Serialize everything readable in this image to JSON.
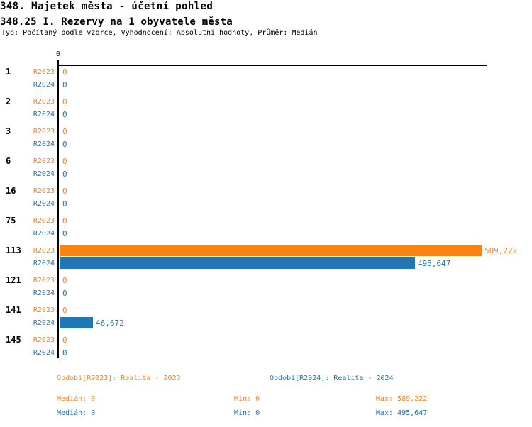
{
  "header": {
    "title": "348. Majetek města - účetní pohled",
    "subtitle": "348.25 I. Rezervy na 1 obyvatele města",
    "meta": "Typ: Počítaný podle vzorce, Vyhodnocení: Absolutní hodnoty, Průměr: Medián"
  },
  "chart_data": {
    "type": "bar",
    "orientation": "horizontal",
    "title": "348.25 I. Rezervy na 1 obyvatele města",
    "axis_tick_label": "0",
    "xlim": [
      0,
      589222
    ],
    "grid": false,
    "categories": [
      "1",
      "2",
      "3",
      "6",
      "16",
      "75",
      "113",
      "121",
      "141",
      "145"
    ],
    "series": [
      {
        "name": "R2023",
        "color": "#FD830F",
        "values": [
          0,
          0,
          0,
          0,
          0,
          0,
          589222,
          0,
          0,
          0
        ],
        "labels": [
          "0",
          "0",
          "0",
          "0",
          "0",
          "0",
          "589,222",
          "0",
          "0",
          "0"
        ]
      },
      {
        "name": "R2024",
        "color": "#2176B5",
        "values": [
          0,
          0,
          0,
          0,
          0,
          0,
          495647,
          0,
          46672,
          0
        ],
        "labels": [
          "0",
          "0",
          "0",
          "0",
          "0",
          "0",
          "495,647",
          "0",
          "46,672",
          "0"
        ]
      }
    ]
  },
  "legend": {
    "r2023": {
      "period_label": "Období[R2023]: Realita - 2023",
      "median": "Medián: 0",
      "min": "Min: 0",
      "max": "Max: 589,222"
    },
    "r2024": {
      "period_label": "Období[R2024]: Realita - 2024",
      "median": "Medián: 0",
      "min": "Min: 0",
      "max": "Max: 495,647"
    }
  },
  "colors": {
    "r2023": "#FD830F",
    "r2024": "#2176B5",
    "axis": "#000000",
    "background": "#FFFFFF"
  }
}
